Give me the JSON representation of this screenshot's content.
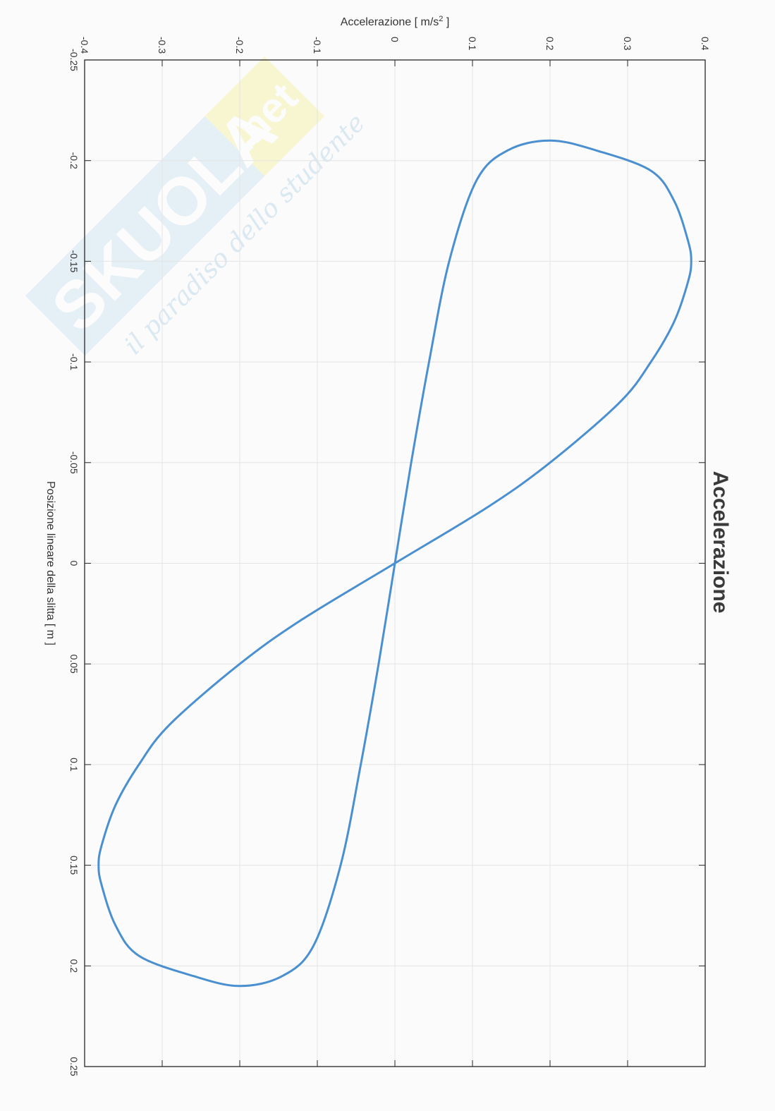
{
  "chart_data": {
    "type": "line",
    "title": "Accelerazione",
    "xlabel": "Posizione lineare della slitta [ m ]",
    "ylabel_prefix": "Accelerazione [ m/s",
    "ylabel_sup": "2",
    "ylabel_suffix": " ]",
    "xlim": [
      -0.25,
      0.25
    ],
    "ylim": [
      -0.4,
      0.4
    ],
    "x_ticks": [
      -0.25,
      -0.2,
      -0.15,
      -0.1,
      -0.05,
      0,
      0.05,
      0.1,
      0.15,
      0.2,
      0.25
    ],
    "x_tick_labels": [
      "-0.25",
      "-0.2",
      "-0.15",
      "-0.1",
      "-0.05",
      "0",
      "0.05",
      "0.1",
      "0.15",
      "0.2",
      "0.25"
    ],
    "y_ticks": [
      -0.4,
      -0.3,
      -0.2,
      -0.1,
      0,
      0.1,
      0.2,
      0.3,
      0.4
    ],
    "y_tick_labels": [
      "-0.4",
      "-0.3",
      "-0.2",
      "-0.1",
      "0",
      "0.1",
      "0.2",
      "0.3",
      "0.4"
    ],
    "grid": true,
    "series": [
      {
        "color": "#4a8fd0",
        "x": [
          0,
          -0.028,
          -0.05,
          -0.08,
          -0.1,
          -0.12,
          -0.14,
          -0.15,
          -0.16,
          -0.18,
          -0.195,
          -0.205,
          -0.21,
          -0.205,
          -0.19,
          -0.15,
          -0.1,
          -0.05,
          0,
          0.05,
          0.1,
          0.15,
          0.19,
          0.205,
          0.21,
          0.205,
          0.195,
          0.18,
          0.16,
          0.15,
          0.14,
          0.12,
          0.1,
          0.08,
          0.05,
          0.028,
          0
        ],
        "y": [
          0,
          0.12,
          0.2,
          0.29,
          0.33,
          0.36,
          0.378,
          0.382,
          0.378,
          0.36,
          0.33,
          0.26,
          0.2,
          0.145,
          0.105,
          0.07,
          0.044,
          0.021,
          0,
          -0.021,
          -0.044,
          -0.07,
          -0.105,
          -0.145,
          -0.2,
          -0.26,
          -0.33,
          -0.36,
          -0.378,
          -0.382,
          -0.378,
          -0.36,
          -0.33,
          -0.29,
          -0.2,
          -0.12,
          0
        ]
      }
    ]
  },
  "watermark": {
    "brand": "SKUOLA",
    "suffix": ".net",
    "tagline": "il paradiso dello studente"
  }
}
